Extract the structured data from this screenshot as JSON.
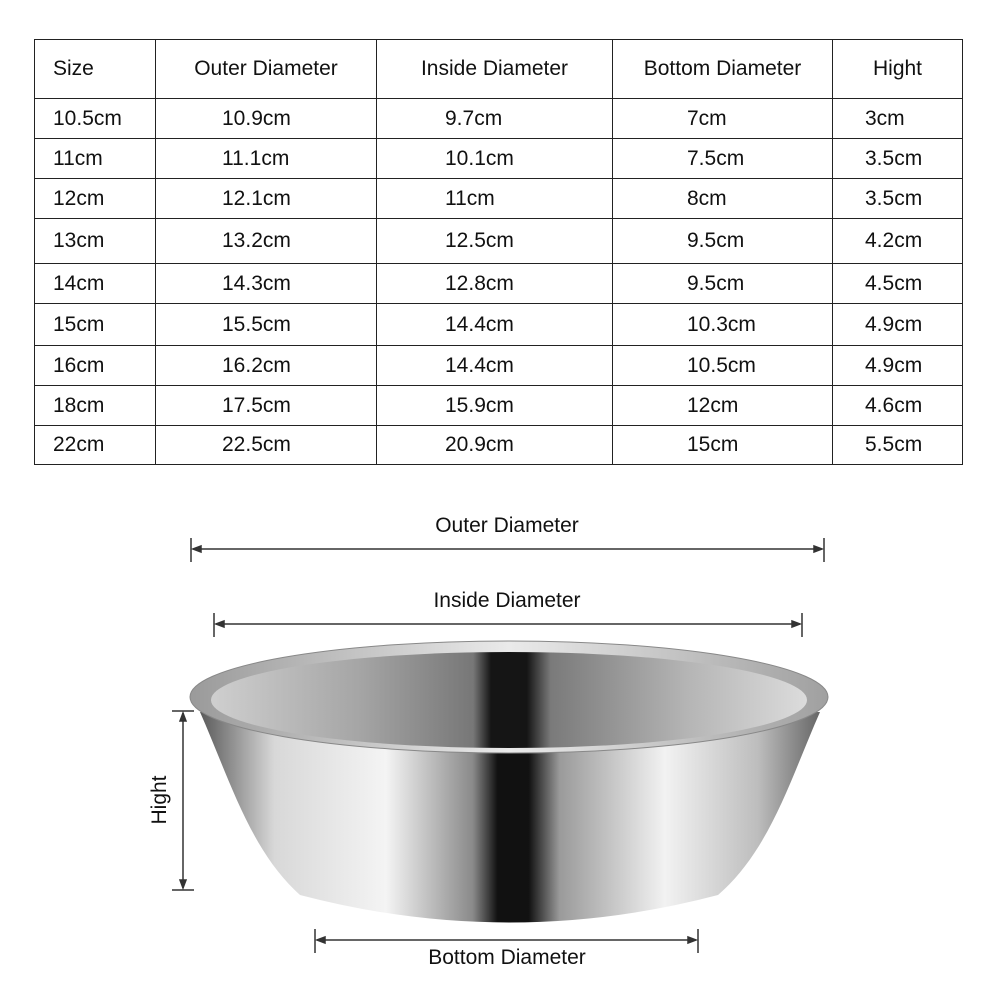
{
  "table": {
    "headers": [
      "Size",
      "Outer Diameter",
      "Inside  Diameter",
      "Bottom Diameter",
      "Hight"
    ],
    "rows": [
      [
        "10.5cm",
        "10.9cm",
        "9.7cm",
        "7cm",
        "3cm"
      ],
      [
        "11cm",
        "11.1cm",
        "10.1cm",
        "7.5cm",
        "3.5cm"
      ],
      [
        "12cm",
        "12.1cm",
        "11cm",
        "8cm",
        "3.5cm"
      ],
      [
        "13cm",
        "13.2cm",
        "12.5cm",
        "9.5cm",
        "4.2cm"
      ],
      [
        "14cm",
        "14.3cm",
        "12.8cm",
        "9.5cm",
        "4.5cm"
      ],
      [
        "15cm",
        "15.5cm",
        "14.4cm",
        "10.3cm",
        "4.9cm"
      ],
      [
        "16cm",
        "16.2cm",
        "14.4cm",
        "10.5cm",
        "4.9cm"
      ],
      [
        "18cm",
        "17.5cm",
        "15.9cm",
        "12cm",
        "4.6cm"
      ],
      [
        "22cm",
        "22.5cm",
        "20.9cm",
        "15cm",
        "5.5cm"
      ]
    ]
  },
  "diagram": {
    "outer_label": "Outer Diameter",
    "inside_label": "Inside Diameter",
    "height_label": "Hight",
    "bottom_label": "Bottom Diameter"
  }
}
